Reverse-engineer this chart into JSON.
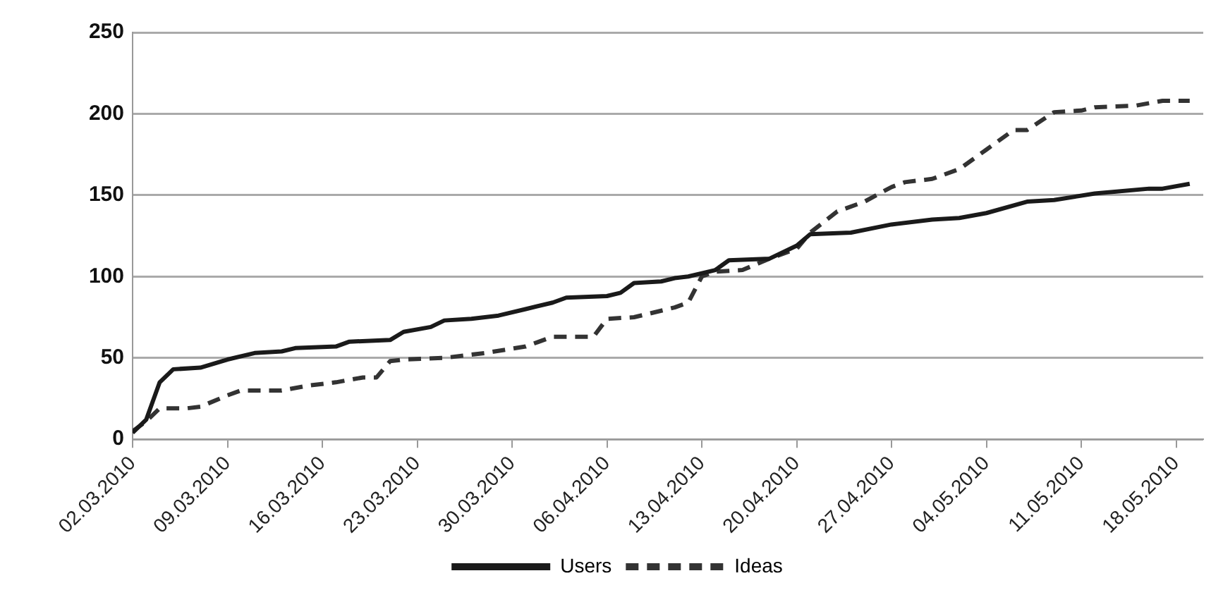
{
  "chart_data": {
    "type": "line",
    "xlim": [
      "2010-03-02",
      "2010-05-20"
    ],
    "xticks": [
      {
        "value": "2010-03-02",
        "label": "02.03.2010"
      },
      {
        "value": "2010-03-09",
        "label": "09.03.2010"
      },
      {
        "value": "2010-03-16",
        "label": "16.03.2010"
      },
      {
        "value": "2010-03-23",
        "label": "23.03.2010"
      },
      {
        "value": "2010-03-30",
        "label": "30.03.2010"
      },
      {
        "value": "2010-04-06",
        "label": "06.04.2010"
      },
      {
        "value": "2010-04-13",
        "label": "13.04.2010"
      },
      {
        "value": "2010-04-20",
        "label": "20.04.2010"
      },
      {
        "value": "2010-04-27",
        "label": "27.04.2010"
      },
      {
        "value": "2010-05-04",
        "label": "04.05.2010"
      },
      {
        "value": "2010-05-11",
        "label": "11.05.2010"
      },
      {
        "value": "2010-05-18",
        "label": "18.05.2010"
      }
    ],
    "ylim": [
      0,
      250
    ],
    "yticks": [
      0,
      50,
      100,
      150,
      200,
      250
    ],
    "grid": "y",
    "legend": "bottom",
    "marker": "none",
    "series": [
      {
        "name": "Users",
        "color": "#1a1a1a",
        "line_style": "solid",
        "x": [
          "2010-03-02",
          "2010-03-03",
          "2010-03-04",
          "2010-03-05",
          "2010-03-07",
          "2010-03-09",
          "2010-03-11",
          "2010-03-13",
          "2010-03-14",
          "2010-03-17",
          "2010-03-18",
          "2010-03-21",
          "2010-03-22",
          "2010-03-24",
          "2010-03-25",
          "2010-03-27",
          "2010-03-29",
          "2010-03-31",
          "2010-04-02",
          "2010-04-03",
          "2010-04-06",
          "2010-04-07",
          "2010-04-08",
          "2010-04-10",
          "2010-04-11",
          "2010-04-12",
          "2010-04-14",
          "2010-04-15",
          "2010-04-18",
          "2010-04-20",
          "2010-04-21",
          "2010-04-24",
          "2010-04-27",
          "2010-04-30",
          "2010-05-02",
          "2010-05-04",
          "2010-05-07",
          "2010-05-09",
          "2010-05-12",
          "2010-05-16",
          "2010-05-17",
          "2010-05-19"
        ],
        "values": [
          4,
          12,
          35,
          43,
          44,
          49,
          53,
          54,
          56,
          57,
          60,
          61,
          66,
          69,
          73,
          74,
          76,
          80,
          84,
          87,
          88,
          90,
          96,
          97,
          99,
          100,
          104,
          110,
          111,
          119,
          126,
          127,
          132,
          135,
          136,
          139,
          146,
          147,
          151,
          154,
          154,
          157
        ]
      },
      {
        "name": "Ideas",
        "color": "#333333",
        "line_style": "dashed",
        "x": [
          "2010-03-02",
          "2010-03-03",
          "2010-03-04",
          "2010-03-06",
          "2010-03-07",
          "2010-03-09",
          "2010-03-10",
          "2010-03-13",
          "2010-03-15",
          "2010-03-17",
          "2010-03-19",
          "2010-03-20",
          "2010-03-21",
          "2010-03-22",
          "2010-03-25",
          "2010-03-28",
          "2010-03-31",
          "2010-04-02",
          "2010-04-05",
          "2010-04-06",
          "2010-04-08",
          "2010-04-11",
          "2010-04-12",
          "2010-04-13",
          "2010-04-14",
          "2010-04-16",
          "2010-04-18",
          "2010-04-20",
          "2010-04-21",
          "2010-04-23",
          "2010-04-25",
          "2010-04-27",
          "2010-04-28",
          "2010-04-30",
          "2010-05-02",
          "2010-05-04",
          "2010-05-05",
          "2010-05-06",
          "2010-05-07",
          "2010-05-09",
          "2010-05-11",
          "2010-05-12",
          "2010-05-15",
          "2010-05-17",
          "2010-05-19"
        ],
        "values": [
          5,
          11,
          19,
          19,
          20,
          27,
          30,
          30,
          33,
          35,
          38,
          38,
          48,
          49,
          50,
          53,
          57,
          63,
          63,
          74,
          75,
          81,
          84,
          100,
          103,
          104,
          111,
          117,
          127,
          140,
          146,
          155,
          158,
          160,
          166,
          178,
          184,
          190,
          190,
          201,
          202,
          204,
          205,
          208,
          208
        ]
      }
    ]
  }
}
